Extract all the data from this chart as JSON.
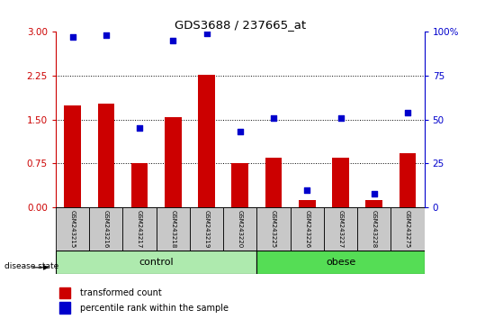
{
  "title": "GDS3688 / 237665_at",
  "samples": [
    "GSM243215",
    "GSM243216",
    "GSM243217",
    "GSM243218",
    "GSM243219",
    "GSM243220",
    "GSM243225",
    "GSM243226",
    "GSM243227",
    "GSM243228",
    "GSM243275"
  ],
  "transformed_count": [
    1.75,
    1.77,
    0.75,
    1.55,
    2.27,
    0.75,
    0.85,
    0.12,
    0.85,
    0.12,
    0.92
  ],
  "percentile_rank_pct": [
    97,
    98,
    45,
    95,
    99,
    43,
    51,
    10,
    51,
    8,
    54
  ],
  "bar_color": "#cc0000",
  "dot_color": "#0000cc",
  "left_yaxis_ticks": [
    0,
    0.75,
    1.5,
    2.25,
    3
  ],
  "right_yaxis_ticks": [
    0,
    25,
    50,
    75,
    100
  ],
  "ylim_left": [
    0,
    3
  ],
  "control_label": "control",
  "obese_label": "obese",
  "disease_state_label": "disease state",
  "legend_red_label": "transformed count",
  "legend_blue_label": "percentile rank within the sample",
  "n_control": 6,
  "n_obese": 5
}
